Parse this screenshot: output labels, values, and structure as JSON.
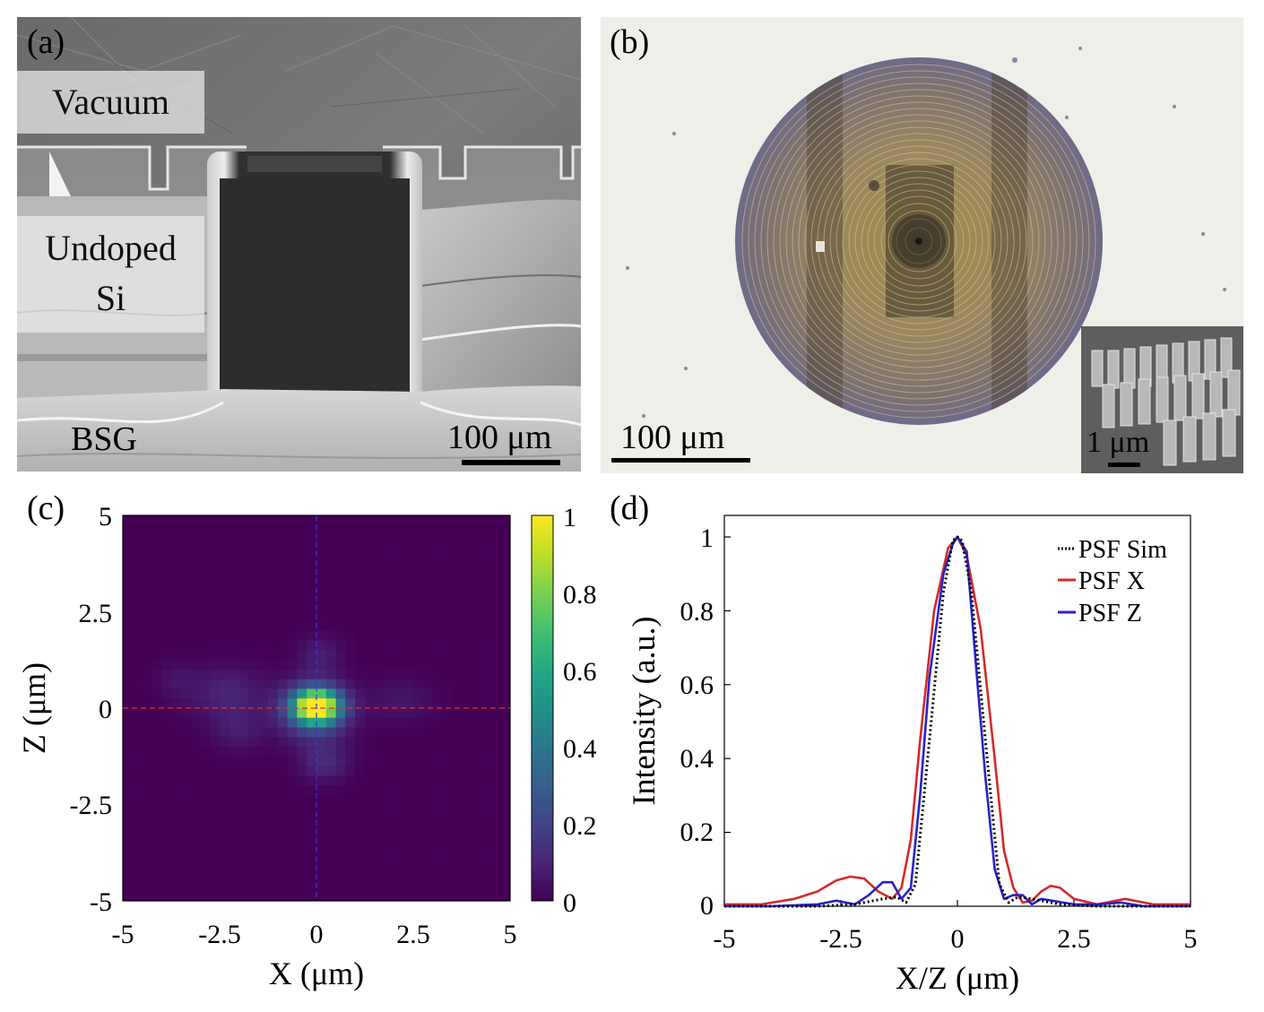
{
  "panels": {
    "a": {
      "label": "(a)",
      "regions": {
        "vacuum": "Vacuum",
        "undoped_line1": "Undoped",
        "undoped_line2": "Si",
        "bsg": "BSG"
      },
      "scalebar": "100 μm"
    },
    "b": {
      "label": "(b)",
      "scalebar": "100 μm",
      "inset_scalebar": "1 μm"
    },
    "c": {
      "label": "(c)",
      "xlabel": "X (μm)",
      "ylabel": "Z (μm)",
      "xticks": [
        "-5",
        "-2.5",
        "0",
        "2.5",
        "5"
      ],
      "yticks": [
        "5",
        "2.5",
        "0",
        "-2.5",
        "-5"
      ],
      "colorbar_ticks": [
        "1",
        "0.8",
        "0.6",
        "0.4",
        "0.2",
        "0"
      ]
    },
    "d": {
      "label": "(d)",
      "xlabel": "X/Z (μm)",
      "ylabel": "Intensity (a.u.)",
      "xticks": [
        "-5",
        "-2.5",
        "0",
        "2.5",
        "5"
      ],
      "yticks": [
        "1",
        "0.8",
        "0.6",
        "0.4",
        "0.2",
        "0"
      ]
    }
  },
  "colors": {
    "psf_sim": "#000000",
    "psf_x": "#d42a2a",
    "psf_z": "#2a22c8"
  },
  "chart_data": [
    {
      "type": "heatmap",
      "title": "",
      "xlabel": "X (μm)",
      "ylabel": "Z (μm)",
      "xlim": [
        -5,
        5
      ],
      "ylim": [
        -5,
        5
      ],
      "colorbar": {
        "range": [
          0,
          1
        ],
        "ticks": [
          0,
          0.2,
          0.4,
          0.6,
          0.8,
          1
        ]
      },
      "peak": {
        "x": 0,
        "z": 0,
        "value": 1
      },
      "guides": [
        {
          "orientation": "horizontal",
          "z": 0,
          "color": "red",
          "style": "dashed"
        },
        {
          "orientation": "vertical",
          "x": 0,
          "color": "blue",
          "style": "dashed"
        }
      ],
      "blobs": [
        {
          "x": 0,
          "z": 0.05,
          "sx": 0.38,
          "sz": 0.28,
          "v": 1.0
        },
        {
          "x": -0.05,
          "z": -0.05,
          "sx": 0.6,
          "sz": 0.5,
          "v": 0.35
        },
        {
          "x": 0.2,
          "z": -1.4,
          "sx": 0.45,
          "sz": 0.35,
          "v": 0.12
        },
        {
          "x": 0.1,
          "z": 1.4,
          "sx": 0.4,
          "sz": 0.35,
          "v": 0.08
        },
        {
          "x": -2.3,
          "z": 0.4,
          "sx": 0.7,
          "sz": 0.5,
          "v": 0.1
        },
        {
          "x": -2.0,
          "z": -0.6,
          "sx": 0.5,
          "sz": 0.4,
          "v": 0.07
        },
        {
          "x": 2.2,
          "z": 0.2,
          "sx": 0.6,
          "sz": 0.4,
          "v": 0.06
        },
        {
          "x": -3.6,
          "z": 0.7,
          "sx": 0.4,
          "sz": 0.35,
          "v": 0.05
        }
      ]
    },
    {
      "type": "line",
      "title": "",
      "xlabel": "X/Z (μm)",
      "ylabel": "Intensity (a.u.)",
      "xlim": [
        -5,
        5
      ],
      "ylim": [
        0,
        1
      ],
      "xticks": [
        -5,
        -2.5,
        0,
        2.5,
        5
      ],
      "yticks": [
        0,
        0.2,
        0.4,
        0.6,
        0.8,
        1
      ],
      "legend_position": "top-right",
      "series": [
        {
          "name": "PSF Sim",
          "style": "dotted",
          "x": [
            -5,
            -4,
            -3,
            -2.2,
            -1.6,
            -1.3,
            -1.1,
            -0.9,
            -0.6,
            -0.3,
            -0.1,
            0,
            0.1,
            0.3,
            0.6,
            0.9,
            1.1,
            1.3,
            1.6,
            2.2,
            3,
            4,
            5
          ],
          "y": [
            0,
            0,
            0,
            0.005,
            0.02,
            0.025,
            0.01,
            0.06,
            0.45,
            0.85,
            0.99,
            1.0,
            0.99,
            0.85,
            0.45,
            0.06,
            0.01,
            0.025,
            0.02,
            0.005,
            0,
            0,
            0
          ]
        },
        {
          "name": "PSF X",
          "style": "solid",
          "x": [
            -5,
            -4.2,
            -3.5,
            -3,
            -2.6,
            -2.3,
            -2.0,
            -1.7,
            -1.4,
            -1.2,
            -1.0,
            -0.8,
            -0.5,
            -0.2,
            0,
            0.2,
            0.5,
            0.8,
            1.0,
            1.2,
            1.4,
            1.6,
            1.8,
            2.0,
            2.2,
            2.5,
            3,
            3.6,
            4.2,
            5
          ],
          "y": [
            0.005,
            0.005,
            0.02,
            0.04,
            0.07,
            0.08,
            0.075,
            0.04,
            0.02,
            0.05,
            0.18,
            0.45,
            0.8,
            0.97,
            1.0,
            0.95,
            0.75,
            0.4,
            0.15,
            0.05,
            0.01,
            0.015,
            0.04,
            0.055,
            0.05,
            0.02,
            0.005,
            0.02,
            0.005,
            0.005
          ]
        },
        {
          "name": "PSF Z",
          "style": "solid",
          "x": [
            -5,
            -4,
            -3,
            -2.6,
            -2.2,
            -1.9,
            -1.6,
            -1.4,
            -1.2,
            -1.0,
            -0.8,
            -0.6,
            -0.3,
            -0.1,
            0,
            0.2,
            0.4,
            0.6,
            0.8,
            1.0,
            1.2,
            1.4,
            1.6,
            1.8,
            2.5,
            3,
            3.5,
            4,
            5
          ],
          "y": [
            0,
            0,
            0.005,
            0.015,
            0.005,
            0.03,
            0.065,
            0.065,
            0.02,
            0.05,
            0.3,
            0.62,
            0.9,
            0.98,
            1.0,
            0.96,
            0.65,
            0.35,
            0.1,
            0.02,
            0.03,
            0.03,
            0.005,
            0.02,
            0.005,
            0.005,
            0.01,
            0,
            0
          ]
        }
      ]
    }
  ]
}
